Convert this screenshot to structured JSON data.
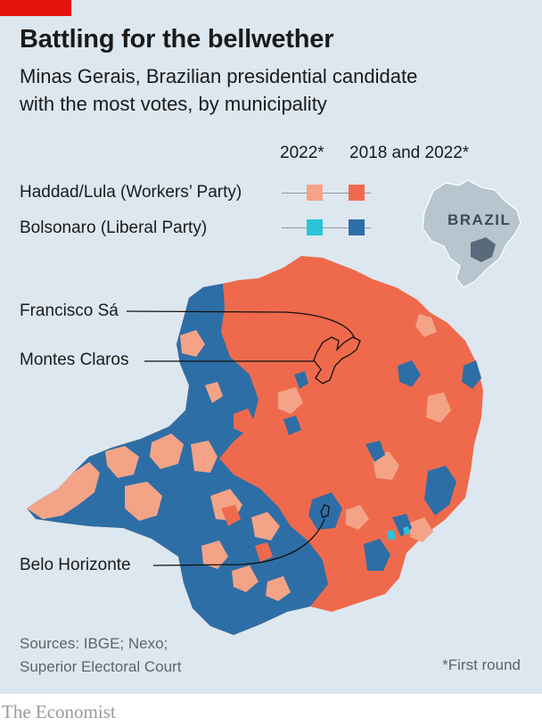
{
  "header": {
    "title": "Battling for the bellwether",
    "subtitle_line1": "Minas Gerais, Brazilian presidential candidate",
    "subtitle_line2": "with the most votes, by municipality"
  },
  "legend": {
    "col_2022": "2022*",
    "col_both": "2018 and 2022*",
    "rows": [
      {
        "name": "Haddad/Lula",
        "party": "(Workers’ Party)",
        "color_2022": "#f4a387",
        "color_both": "#ef6a4c"
      },
      {
        "name": "Bolsonaro",
        "party": "(Liberal Party)",
        "color_2022": "#2bc4d7",
        "color_both": "#2e6ea6"
      }
    ]
  },
  "inset": {
    "label": "BRAZIL"
  },
  "callouts": {
    "francisco_sa": "Francisco Sá",
    "montes_claros": "Montes Claros",
    "belo_horizonte": "Belo Horizonte"
  },
  "footer": {
    "sources_line1": "Sources: IBGE; Nexo;",
    "sources_line2": "Superior Electoral Court",
    "footnote": "*First round",
    "brand": "The Economist"
  },
  "colors": {
    "background": "#dde7ef",
    "lula_both": "#ef6a4c",
    "lula_2022": "#f4a387",
    "bolsonaro_both": "#2e6ea6",
    "bolsonaro_2022": "#2bc4d7",
    "accent": "#e3120b"
  }
}
